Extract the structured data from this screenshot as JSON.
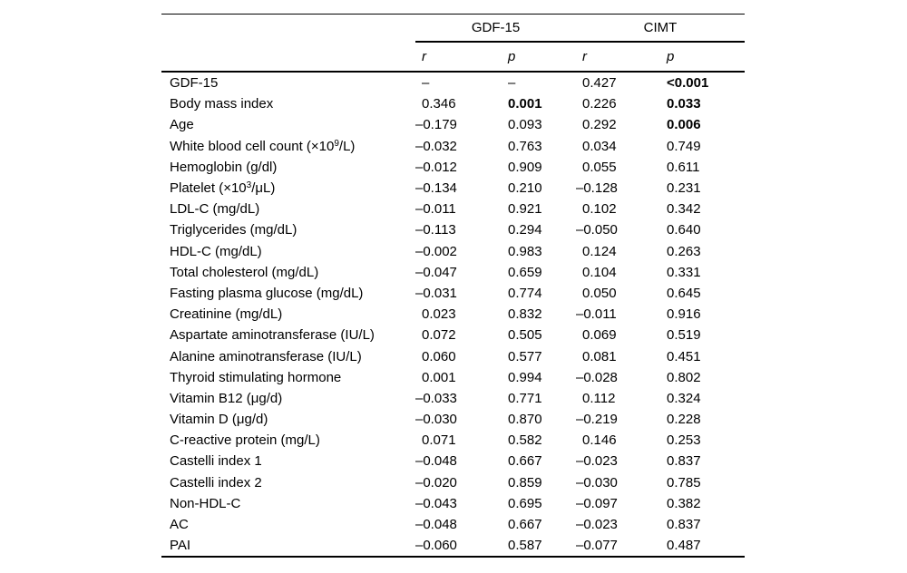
{
  "page": {
    "background": "#ffffff",
    "text_color": "#000000"
  },
  "table": {
    "group_headers": [
      "GDF-15",
      "CIMT"
    ],
    "sub_headers": [
      "r",
      "p",
      "r",
      "p"
    ],
    "rows": [
      {
        "label": "GDF-15",
        "values": [
          "–",
          "–",
          "0.427",
          "<0.001"
        ],
        "bold": [
          false,
          false,
          false,
          true
        ]
      },
      {
        "label": "Body mass index",
        "values": [
          "0.346",
          "0.001",
          "0.226",
          "0.033"
        ],
        "bold": [
          false,
          true,
          false,
          true
        ]
      },
      {
        "label": "Age",
        "values": [
          "–0.179",
          "0.093",
          "0.292",
          "0.006"
        ],
        "bold": [
          false,
          false,
          false,
          true
        ]
      },
      {
        "label": "White blood cell count (×10^9^/L)",
        "values": [
          "–0.032",
          "0.763",
          "0.034",
          "0.749"
        ],
        "bold": [
          false,
          false,
          false,
          false
        ]
      },
      {
        "label": "Hemoglobin (g/dl)",
        "values": [
          "–0.012",
          "0.909",
          "0.055",
          "0.611"
        ],
        "bold": [
          false,
          false,
          false,
          false
        ]
      },
      {
        "label": "Platelet (×10^3^/μL)",
        "values": [
          "–0.134",
          "0.210",
          "–0.128",
          "0.231"
        ],
        "bold": [
          false,
          false,
          false,
          false
        ]
      },
      {
        "label": "LDL-C (mg/dL)",
        "values": [
          "–0.011",
          "0.921",
          "0.102",
          "0.342"
        ],
        "bold": [
          false,
          false,
          false,
          false
        ]
      },
      {
        "label": "Triglycerides (mg/dL)",
        "values": [
          "–0.113",
          "0.294",
          "–0.050",
          "0.640"
        ],
        "bold": [
          false,
          false,
          false,
          false
        ]
      },
      {
        "label": "HDL-C (mg/dL)",
        "values": [
          "–0.002",
          "0.983",
          "0.124",
          "0.263"
        ],
        "bold": [
          false,
          false,
          false,
          false
        ]
      },
      {
        "label": "Total cholesterol (mg/dL)",
        "values": [
          "–0.047",
          "0.659",
          "0.104",
          "0.331"
        ],
        "bold": [
          false,
          false,
          false,
          false
        ]
      },
      {
        "label": "Fasting plasma glucose (mg/dL)",
        "values": [
          "–0.031",
          "0.774",
          "0.050",
          "0.645"
        ],
        "bold": [
          false,
          false,
          false,
          false
        ]
      },
      {
        "label": "Creatinine (mg/dL)",
        "values": [
          "0.023",
          "0.832",
          "–0.011",
          "0.916"
        ],
        "bold": [
          false,
          false,
          false,
          false
        ]
      },
      {
        "label": "Aspartate aminotransferase (IU/L)",
        "values": [
          "0.072",
          "0.505",
          "0.069",
          "0.519"
        ],
        "bold": [
          false,
          false,
          false,
          false
        ]
      },
      {
        "label": "Alanine aminotransferase (IU/L)",
        "values": [
          "0.060",
          "0.577",
          "0.081",
          "0.451"
        ],
        "bold": [
          false,
          false,
          false,
          false
        ]
      },
      {
        "label": "Thyroid stimulating hormone",
        "values": [
          "0.001",
          "0.994",
          "–0.028",
          "0.802"
        ],
        "bold": [
          false,
          false,
          false,
          false
        ]
      },
      {
        "label": "Vitamin B12 (μg/d)",
        "values": [
          "–0.033",
          "0.771",
          "0.112",
          "0.324"
        ],
        "bold": [
          false,
          false,
          false,
          false
        ]
      },
      {
        "label": "Vitamin D (μg/d)",
        "values": [
          "–0.030",
          "0.870",
          "–0.219",
          "0.228"
        ],
        "bold": [
          false,
          false,
          false,
          false
        ]
      },
      {
        "label": "C-reactive protein (mg/L)",
        "values": [
          "0.071",
          "0.582",
          "0.146",
          "0.253"
        ],
        "bold": [
          false,
          false,
          false,
          false
        ]
      },
      {
        "label": "Castelli index 1",
        "values": [
          "–0.048",
          "0.667",
          "–0.023",
          "0.837"
        ],
        "bold": [
          false,
          false,
          false,
          false
        ]
      },
      {
        "label": "Castelli index 2",
        "values": [
          "–0.020",
          "0.859",
          "–0.030",
          "0.785"
        ],
        "bold": [
          false,
          false,
          false,
          false
        ]
      },
      {
        "label": "Non-HDL-C",
        "values": [
          "–0.043",
          "0.695",
          "–0.097",
          "0.382"
        ],
        "bold": [
          false,
          false,
          false,
          false
        ]
      },
      {
        "label": "AC",
        "values": [
          "–0.048",
          "0.667",
          "–0.023",
          "0.837"
        ],
        "bold": [
          false,
          false,
          false,
          false
        ]
      },
      {
        "label": "PAI",
        "values": [
          "–0.060",
          "0.587",
          "–0.077",
          "0.487"
        ],
        "bold": [
          false,
          false,
          false,
          false
        ]
      }
    ]
  }
}
